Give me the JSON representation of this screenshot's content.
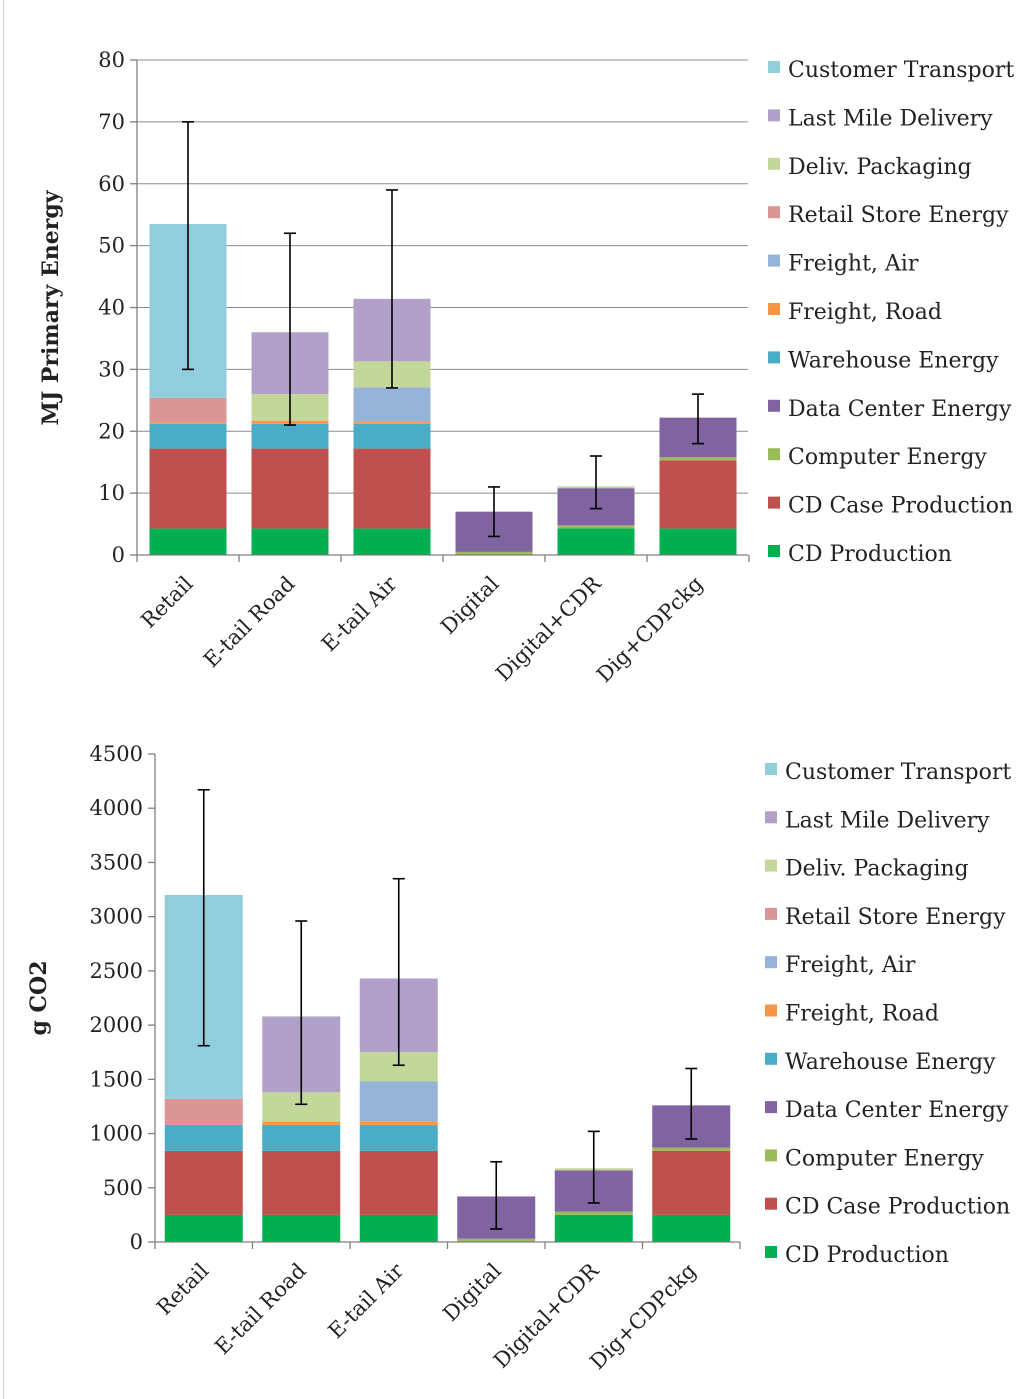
{
  "charts": [
    {
      "ylabel": "MJ Primary Energy"
    },
    {
      "ylabel": "g CO2"
    }
  ],
  "chart_data": [
    {
      "type": "bar",
      "stacked": true,
      "ylabel": "MJ Primary Energy",
      "ylim": [
        0,
        80
      ],
      "yticks": [
        0,
        10,
        20,
        30,
        40,
        50,
        60,
        70,
        80
      ],
      "grid": true,
      "legend_position": "right",
      "categories": [
        "Retail",
        "E-tail Road",
        "E-tail Air",
        "Digital",
        "Digital+CDR",
        "Dig+CDPckg"
      ],
      "series": [
        {
          "name": "CD Production",
          "color": "#00B050",
          "values": [
            4.3,
            4.3,
            4.3,
            0,
            4.3,
            4.3
          ]
        },
        {
          "name": "CD Case Production",
          "color": "#C0504D",
          "values": [
            12.9,
            12.9,
            12.9,
            0,
            0,
            11.0
          ]
        },
        {
          "name": "Computer Energy",
          "color": "#9BBB59",
          "values": [
            0,
            0,
            0,
            0.5,
            0.5,
            0.5
          ]
        },
        {
          "name": "Data Center Energy",
          "color": "#8064A2",
          "values": [
            0,
            0,
            0,
            6.5,
            6.0,
            6.4
          ]
        },
        {
          "name": "Warehouse Energy",
          "color": "#4BACC6",
          "values": [
            4.0,
            4.0,
            4.0,
            0,
            0,
            0
          ]
        },
        {
          "name": "Freight, Road",
          "color": "#F79646",
          "values": [
            0.2,
            0.5,
            0.4,
            0,
            0,
            0
          ]
        },
        {
          "name": "Freight, Air",
          "color": "#95B3D7",
          "values": [
            0,
            0,
            5.5,
            0,
            0,
            0
          ]
        },
        {
          "name": "Retail Store Energy",
          "color": "#DA9694",
          "values": [
            4.0,
            0,
            0,
            0,
            0,
            0
          ]
        },
        {
          "name": "Deliv. Packaging",
          "color": "#C4D79B",
          "values": [
            0,
            4.3,
            4.2,
            0,
            0.3,
            0
          ]
        },
        {
          "name": "Last Mile Delivery",
          "color": "#B1A0C7",
          "values": [
            0,
            10.0,
            10.1,
            0,
            0,
            0
          ]
        },
        {
          "name": "Customer Transport",
          "color": "#92CDDC",
          "values": [
            28.1,
            0,
            0,
            0,
            0,
            0
          ]
        }
      ],
      "error_bars": [
        [
          30,
          70
        ],
        [
          21,
          52
        ],
        [
          27,
          59
        ],
        [
          3,
          11
        ],
        [
          7.5,
          16
        ],
        [
          18,
          26
        ]
      ]
    },
    {
      "type": "bar",
      "stacked": true,
      "ylabel": "g CO2",
      "ylim": [
        0,
        4500
      ],
      "yticks": [
        0,
        500,
        1000,
        1500,
        2000,
        2500,
        3000,
        3500,
        4000,
        4500
      ],
      "grid": false,
      "legend_position": "right",
      "categories": [
        "Retail",
        "E-tail Road",
        "E-tail Air",
        "Digital",
        "Digital+CDR",
        "Dig+CDPckg"
      ],
      "series": [
        {
          "name": "CD Production",
          "color": "#00B050",
          "values": [
            250,
            250,
            250,
            0,
            250,
            250
          ]
        },
        {
          "name": "CD Case Production",
          "color": "#C0504D",
          "values": [
            590,
            590,
            590,
            0,
            0,
            590
          ]
        },
        {
          "name": "Computer Energy",
          "color": "#9BBB59",
          "values": [
            0,
            0,
            0,
            30,
            30,
            30
          ]
        },
        {
          "name": "Data Center Energy",
          "color": "#8064A2",
          "values": [
            0,
            0,
            0,
            390,
            380,
            390
          ]
        },
        {
          "name": "Warehouse Energy",
          "color": "#4BACC6",
          "values": [
            240,
            240,
            240,
            0,
            0,
            0
          ]
        },
        {
          "name": "Freight, Road",
          "color": "#F79646",
          "values": [
            0,
            30,
            30,
            0,
            0,
            0
          ]
        },
        {
          "name": "Freight, Air",
          "color": "#95B3D7",
          "values": [
            0,
            0,
            370,
            0,
            0,
            0
          ]
        },
        {
          "name": "Retail Store Energy",
          "color": "#DA9694",
          "values": [
            240,
            0,
            0,
            0,
            0,
            0
          ]
        },
        {
          "name": "Deliv. Packaging",
          "color": "#C4D79B",
          "values": [
            0,
            270,
            270,
            0,
            20,
            0
          ]
        },
        {
          "name": "Last Mile Delivery",
          "color": "#B1A0C7",
          "values": [
            0,
            700,
            680,
            0,
            0,
            0
          ]
        },
        {
          "name": "Customer Transport",
          "color": "#92CDDC",
          "values": [
            1880,
            0,
            0,
            0,
            0,
            0
          ]
        }
      ],
      "error_bars": [
        [
          1810,
          4170
        ],
        [
          1270,
          2960
        ],
        [
          1630,
          3350
        ],
        [
          120,
          740
        ],
        [
          360,
          1020
        ],
        [
          950,
          1600
        ]
      ]
    }
  ]
}
